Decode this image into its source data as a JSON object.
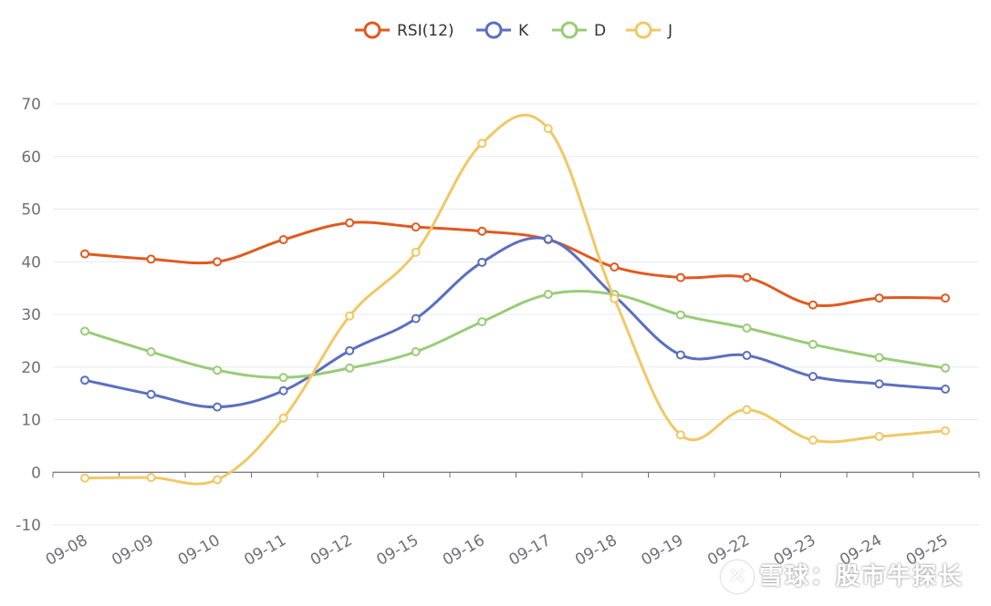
{
  "chart_data": {
    "type": "line",
    "categories": [
      "09-08",
      "09-09",
      "09-10",
      "09-11",
      "09-12",
      "09-15",
      "09-16",
      "09-17",
      "09-18",
      "09-19",
      "09-22",
      "09-23",
      "09-24",
      "09-25"
    ],
    "series": [
      {
        "name": "RSI(12)",
        "color": "#e05a1f",
        "values": [
          41.5,
          40.5,
          40.0,
          44.2,
          47.4,
          46.6,
          45.8,
          44.2,
          39.0,
          37.0,
          37.0,
          31.8,
          33.1,
          33.1
        ]
      },
      {
        "name": "K",
        "color": "#5b6fc0",
        "values": [
          17.5,
          14.8,
          12.4,
          15.5,
          23.1,
          29.2,
          39.9,
          44.3,
          33.5,
          22.3,
          22.2,
          18.2,
          16.8,
          15.8
        ]
      },
      {
        "name": "D",
        "color": "#99cc77",
        "values": [
          26.8,
          22.9,
          19.4,
          18.0,
          19.8,
          22.9,
          28.6,
          33.8,
          33.8,
          29.9,
          27.4,
          24.3,
          21.8,
          19.8
        ]
      },
      {
        "name": "J",
        "color": "#f0c865",
        "values": [
          -1.1,
          -1.0,
          -1.4,
          10.3,
          29.7,
          41.8,
          62.5,
          65.3,
          33.0,
          7.1,
          11.9,
          6.1,
          6.8,
          7.9
        ]
      }
    ],
    "y_ticks": [
      "70",
      "60",
      "50",
      "40",
      "30",
      "20",
      "10",
      "0",
      "-10"
    ],
    "ylim": [
      -10,
      70
    ],
    "grid": true,
    "legend_position": "top-center",
    "xlabel": "",
    "ylabel": ""
  },
  "watermark": {
    "text": "雪球：股市牛探长"
  }
}
